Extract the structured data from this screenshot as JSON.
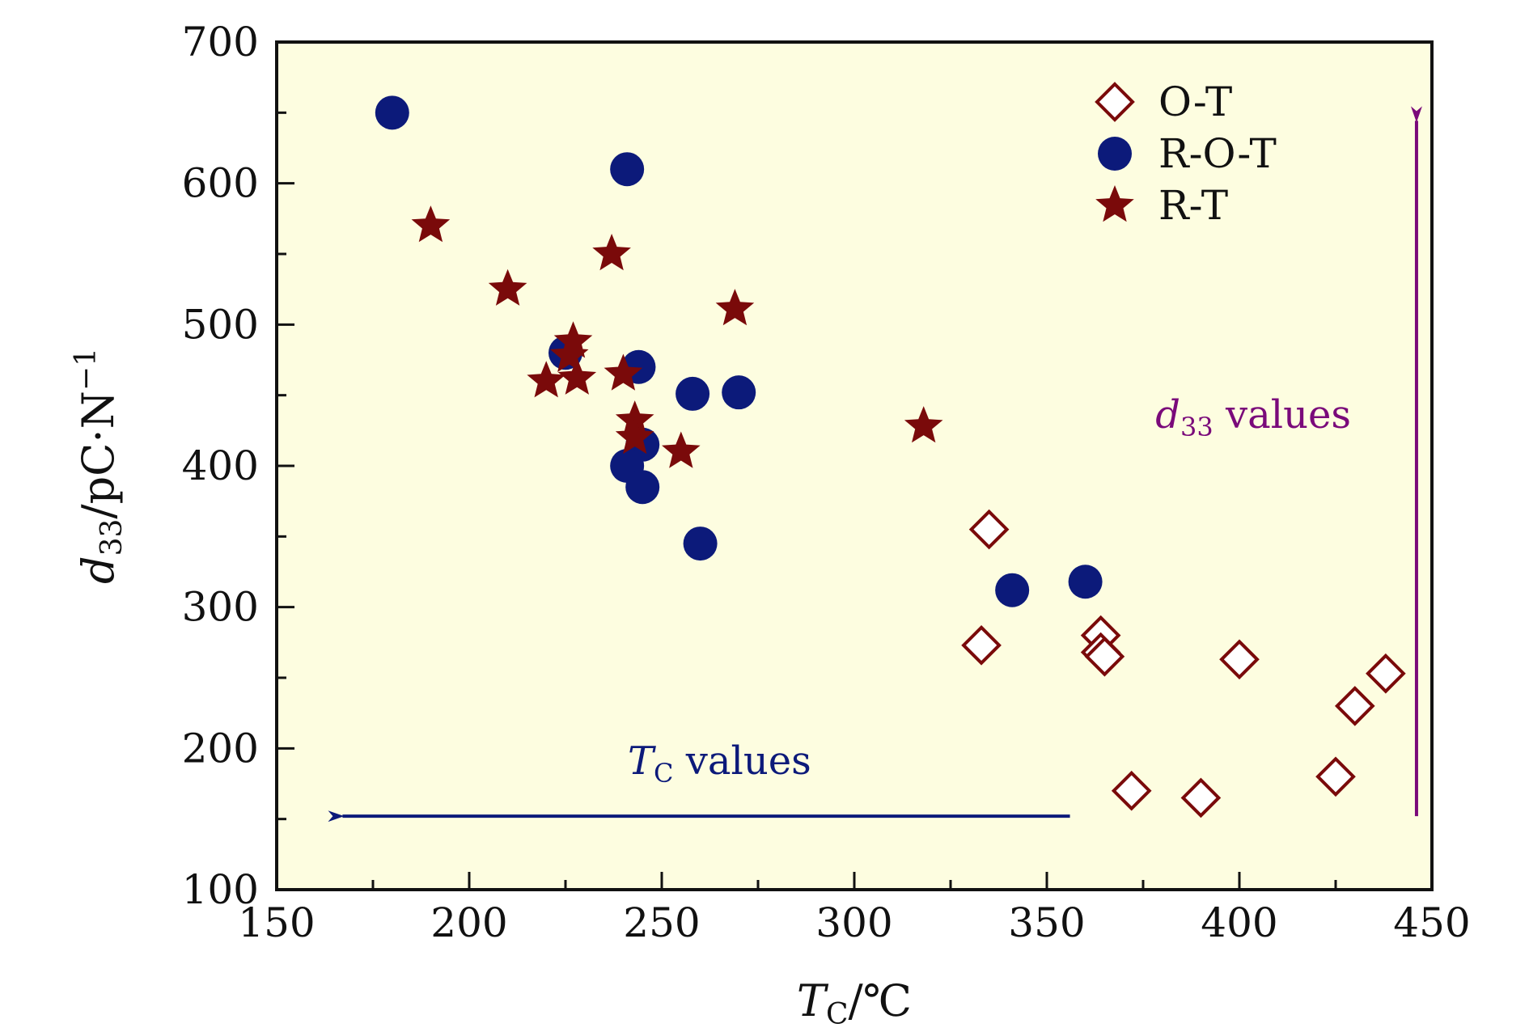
{
  "chart_data": {
    "type": "scatter",
    "xlabel": "T",
    "xlabel_sub": "C",
    "xlabel_unit": "/℃",
    "ylabel": "d",
    "ylabel_sub": "33",
    "ylabel_unit": "/pC·N",
    "ylabel_sup": "−1",
    "xlim": [
      150,
      450
    ],
    "ylim": [
      100,
      700
    ],
    "xticks": [
      150,
      200,
      250,
      300,
      350,
      400,
      450
    ],
    "yticks": [
      100,
      200,
      300,
      400,
      500,
      600,
      700
    ],
    "grid": false,
    "legend_position": "top-right",
    "background": "#fdfde0",
    "series": [
      {
        "name": "O-T",
        "marker": "open-diamond",
        "color": "#7a0a0a",
        "points": [
          [
            335,
            355
          ],
          [
            333,
            273
          ],
          [
            364,
            280
          ],
          [
            364,
            268
          ],
          [
            365,
            265
          ],
          [
            400,
            263
          ],
          [
            438,
            253
          ],
          [
            430,
            230
          ],
          [
            425,
            180
          ],
          [
            372,
            170
          ],
          [
            390,
            165
          ]
        ]
      },
      {
        "name": "R-O-T",
        "marker": "filled-circle",
        "color": "#0c1a7a",
        "points": [
          [
            180,
            650
          ],
          [
            241,
            610
          ],
          [
            225,
            480
          ],
          [
            244,
            470
          ],
          [
            258,
            451
          ],
          [
            270,
            452
          ],
          [
            245,
            415
          ],
          [
            241,
            400
          ],
          [
            245,
            385
          ],
          [
            260,
            345
          ],
          [
            341,
            312
          ],
          [
            360,
            318
          ]
        ]
      },
      {
        "name": "R-T",
        "marker": "filled-star",
        "color": "#7a0a0a",
        "points": [
          [
            190,
            570
          ],
          [
            210,
            525
          ],
          [
            237,
            550
          ],
          [
            269,
            511
          ],
          [
            227,
            488
          ],
          [
            226,
            478
          ],
          [
            220,
            460
          ],
          [
            228,
            462
          ],
          [
            240,
            465
          ],
          [
            243,
            432
          ],
          [
            243,
            420
          ],
          [
            255,
            410
          ],
          [
            318,
            428
          ]
        ]
      }
    ],
    "annotations": {
      "tc_arrow": {
        "label_main": "T",
        "label_sub": "C",
        "label_rest": " values",
        "color": "#0c1a7a",
        "from": [
          356,
          152
        ],
        "to": [
          165,
          152
        ]
      },
      "d33_arrow": {
        "label_main": "d",
        "label_sub": "33",
        "label_rest": " values",
        "color": "#7a0a7a",
        "from": [
          446,
          152
        ],
        "to": [
          446,
          650
        ]
      }
    }
  }
}
